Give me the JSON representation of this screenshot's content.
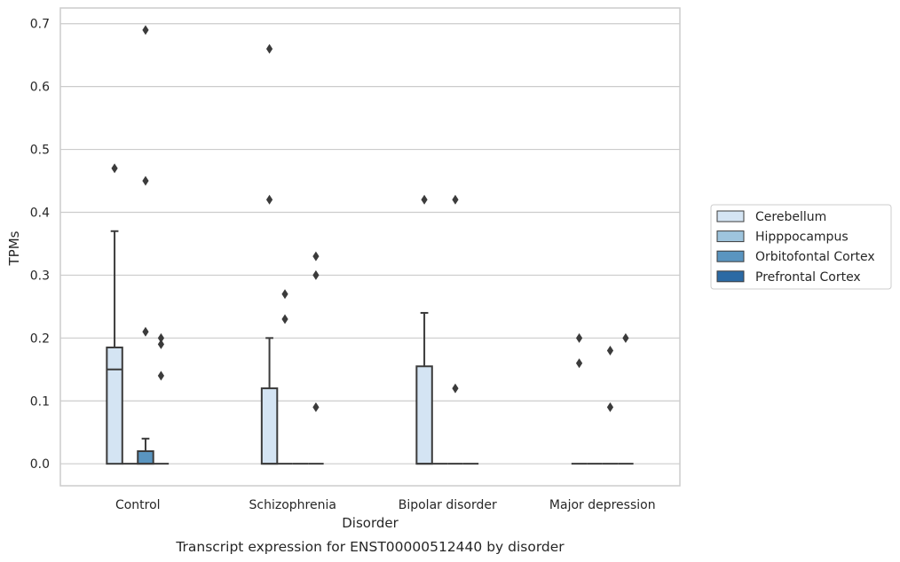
{
  "chart_data": {
    "type": "box",
    "caption": "Transcript expression for ENST00000512440 by disorder",
    "xlabel": "Disorder",
    "ylabel": "TPMs",
    "ylim": [
      -0.035,
      0.725
    ],
    "yticks": [
      0.0,
      0.1,
      0.2,
      0.3,
      0.4,
      0.5,
      0.6,
      0.7
    ],
    "ytick_labels": [
      "0.0",
      "0.1",
      "0.2",
      "0.3",
      "0.4",
      "0.5",
      "0.6",
      "0.7"
    ],
    "grid": "horizontal",
    "legend_placement": "right, outside",
    "categories": [
      "Control",
      "Schizophrenia",
      "Bipolar disorder",
      "Major depression"
    ],
    "series": [
      {
        "name": "Cerebellum",
        "color": "#d4e4f3",
        "boxes": [
          {
            "q1": 0.0,
            "median": 0.15,
            "q3": 0.185,
            "whisker_low": 0.0,
            "whisker_high": 0.37,
            "outliers": [
              0.47
            ]
          },
          {
            "q1": 0.0,
            "median": 0.0,
            "q3": 0.12,
            "whisker_low": 0.0,
            "whisker_high": 0.2,
            "outliers": [
              0.42,
              0.66
            ]
          },
          {
            "q1": 0.0,
            "median": 0.0,
            "q3": 0.155,
            "whisker_low": 0.0,
            "whisker_high": 0.24,
            "outliers": [
              0.42
            ]
          },
          {
            "q1": 0.0,
            "median": 0.0,
            "q3": 0.0,
            "whisker_low": 0.0,
            "whisker_high": 0.0,
            "outliers": [
              0.16,
              0.2
            ]
          }
        ]
      },
      {
        "name": "Hipppocampus",
        "color": "#9ec4dd",
        "boxes": [
          {
            "q1": 0.0,
            "median": 0.0,
            "q3": 0.0,
            "whisker_low": 0.0,
            "whisker_high": 0.0,
            "outliers": []
          },
          {
            "q1": 0.0,
            "median": 0.0,
            "q3": 0.0,
            "whisker_low": 0.0,
            "whisker_high": 0.0,
            "outliers": [
              0.23,
              0.27
            ]
          },
          {
            "q1": 0.0,
            "median": 0.0,
            "q3": 0.0,
            "whisker_low": 0.0,
            "whisker_high": 0.0,
            "outliers": []
          },
          {
            "q1": 0.0,
            "median": 0.0,
            "q3": 0.0,
            "whisker_low": 0.0,
            "whisker_high": 0.0,
            "outliers": []
          }
        ]
      },
      {
        "name": "Orbitofontal Cortex",
        "color": "#5a95c0",
        "boxes": [
          {
            "q1": 0.0,
            "median": 0.0,
            "q3": 0.02,
            "whisker_low": 0.0,
            "whisker_high": 0.04,
            "outliers": [
              0.21,
              0.45,
              0.69
            ]
          },
          {
            "q1": 0.0,
            "median": 0.0,
            "q3": 0.0,
            "whisker_low": 0.0,
            "whisker_high": 0.0,
            "outliers": []
          },
          {
            "q1": 0.0,
            "median": 0.0,
            "q3": 0.0,
            "whisker_low": 0.0,
            "whisker_high": 0.0,
            "outliers": [
              0.12,
              0.42
            ]
          },
          {
            "q1": 0.0,
            "median": 0.0,
            "q3": 0.0,
            "whisker_low": 0.0,
            "whisker_high": 0.0,
            "outliers": [
              0.09,
              0.18
            ]
          }
        ]
      },
      {
        "name": "Prefrontal Cortex",
        "color": "#2b6aa4",
        "boxes": [
          {
            "q1": 0.0,
            "median": 0.0,
            "q3": 0.0,
            "whisker_low": 0.0,
            "whisker_high": 0.0,
            "outliers": [
              0.14,
              0.19,
              0.2
            ]
          },
          {
            "q1": 0.0,
            "median": 0.0,
            "q3": 0.0,
            "whisker_low": 0.0,
            "whisker_high": 0.0,
            "outliers": [
              0.09,
              0.3,
              0.33
            ]
          },
          {
            "q1": 0.0,
            "median": 0.0,
            "q3": 0.0,
            "whisker_low": 0.0,
            "whisker_high": 0.0,
            "outliers": []
          },
          {
            "q1": 0.0,
            "median": 0.0,
            "q3": 0.0,
            "whisker_low": 0.0,
            "whisker_high": 0.0,
            "outliers": [
              0.2
            ]
          }
        ]
      }
    ]
  }
}
